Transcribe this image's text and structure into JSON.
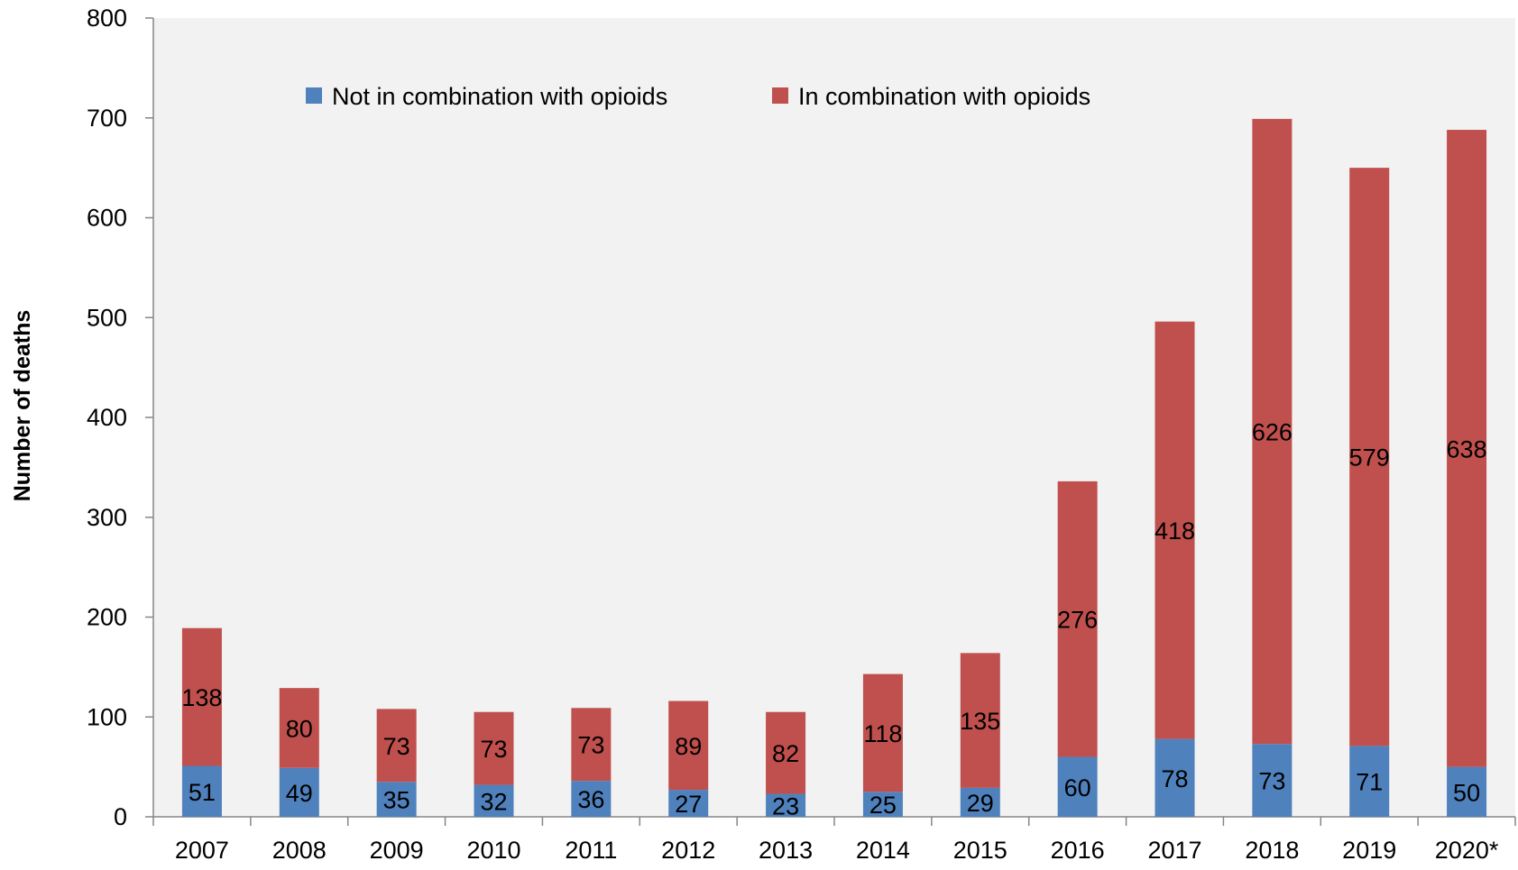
{
  "chart_data": {
    "type": "bar",
    "stacked": true,
    "title": "",
    "xlabel": "",
    "ylabel": "Number of deaths",
    "ylim": [
      0,
      800
    ],
    "yticks": [
      0,
      100,
      200,
      300,
      400,
      500,
      600,
      700,
      800
    ],
    "grid": false,
    "legend_position": "top",
    "categories": [
      "2007",
      "2008",
      "2009",
      "2010",
      "2011",
      "2012",
      "2013",
      "2014",
      "2015",
      "2016",
      "2017",
      "2018",
      "2019",
      "2020*"
    ],
    "series": [
      {
        "name": "Not in combination with opioids",
        "color": "#4f81bd",
        "values": [
          51,
          49,
          35,
          32,
          36,
          27,
          23,
          25,
          29,
          60,
          78,
          73,
          71,
          50
        ]
      },
      {
        "name": "In combination with opioids",
        "color": "#c0504d",
        "values": [
          138,
          80,
          73,
          73,
          73,
          89,
          82,
          118,
          135,
          276,
          418,
          626,
          579,
          638
        ]
      }
    ],
    "plot_background": "#f2f2f2"
  }
}
